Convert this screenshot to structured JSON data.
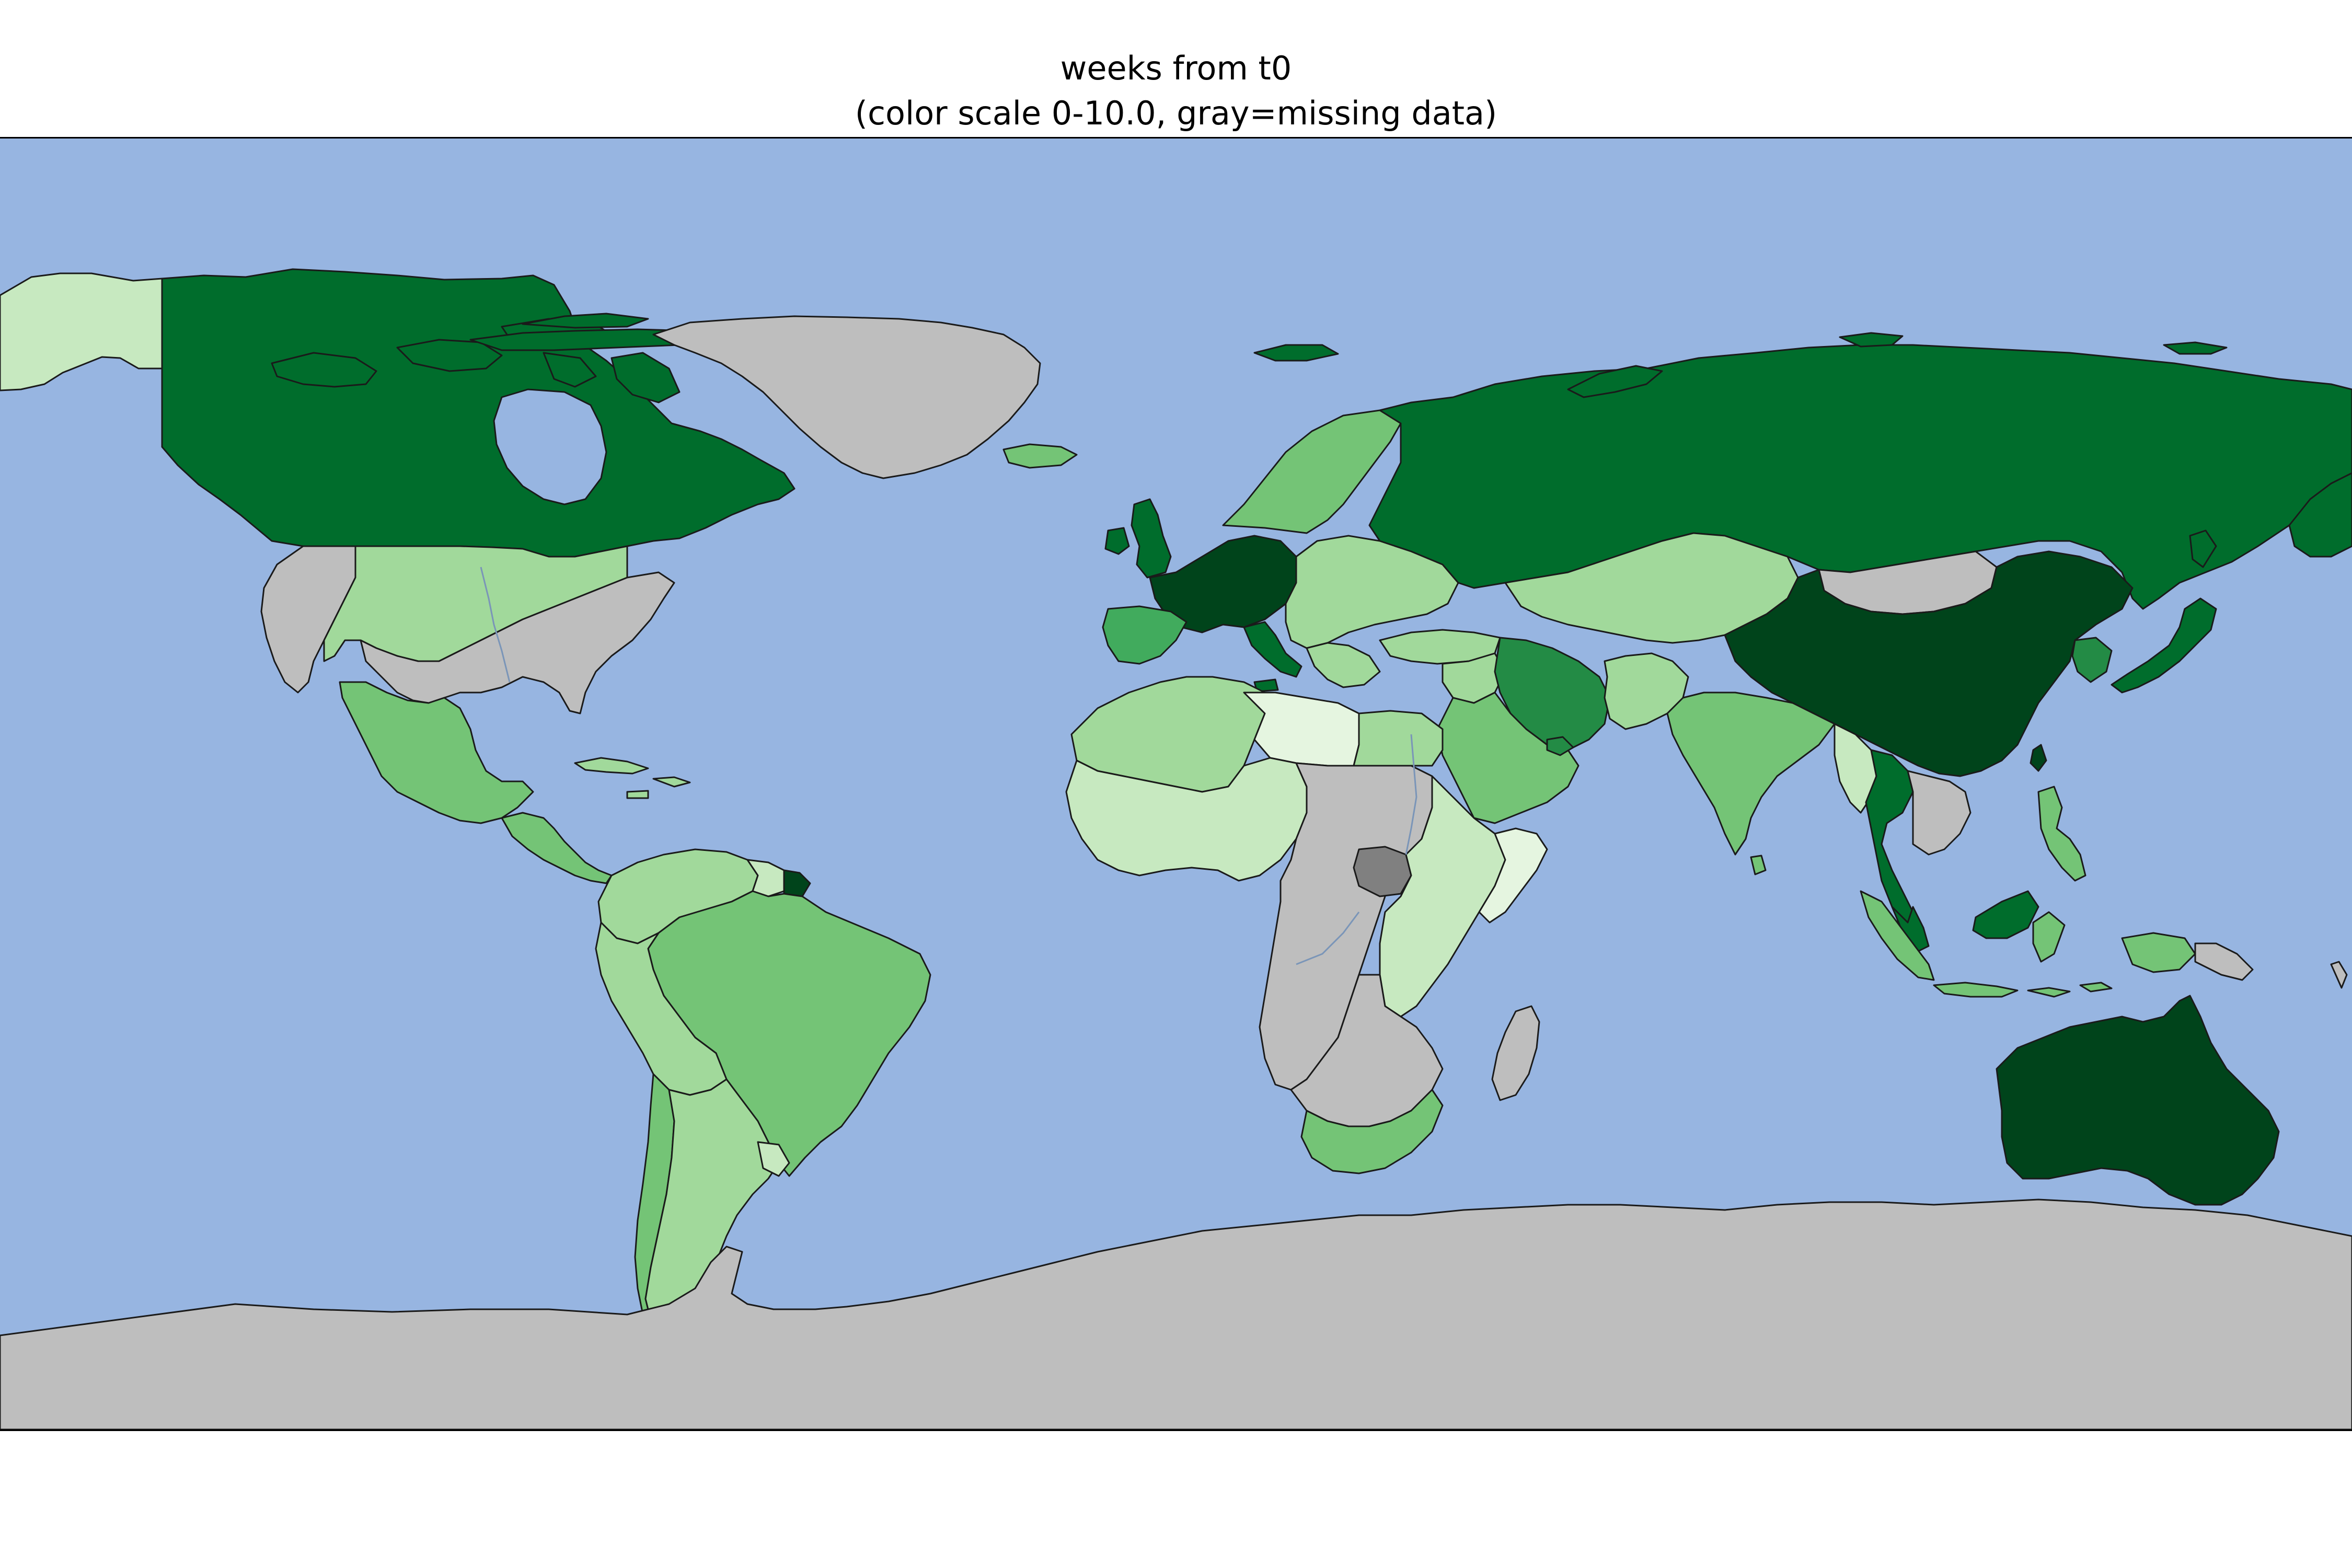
{
  "title": {
    "line1": "weeks from t0",
    "line2": "(color scale 0-10.0, gray=missing data)"
  },
  "colors": {
    "ocean": "#97b5e1",
    "missing": "#bebebe",
    "dark_missing": "#808080",
    "coast": "#1a1a1a",
    "river": "#7a95b8",
    "scale": [
      "#f7fcf5",
      "#e5f5e0",
      "#c7e9c0",
      "#a1d99b",
      "#74c476",
      "#41ab5d",
      "#238b45",
      "#006d2c",
      "#00441b"
    ]
  },
  "color_scale": {
    "min": 0,
    "max": 10.0,
    "missing_label": "gray=missing data"
  },
  "regions": [
    {
      "name": "Alaska",
      "level": 2
    },
    {
      "name": "Canada",
      "level": 7
    },
    {
      "name": "Greenland",
      "level": null
    },
    {
      "name": "United States (west)",
      "level": null
    },
    {
      "name": "United States (central)",
      "level": 3
    },
    {
      "name": "United States (east)",
      "level": null
    },
    {
      "name": "Mexico",
      "level": 4
    },
    {
      "name": "Central America",
      "level": 4
    },
    {
      "name": "Caribbean",
      "level": 3
    },
    {
      "name": "Colombia / Venezuela",
      "level": 3
    },
    {
      "name": "Guianas",
      "level": 2
    },
    {
      "name": "French Guiana",
      "level": 8
    },
    {
      "name": "Brazil",
      "level": 4
    },
    {
      "name": "Peru / Bolivia",
      "level": 3
    },
    {
      "name": "Chile",
      "level": 4
    },
    {
      "name": "Argentina",
      "level": 3
    },
    {
      "name": "Uruguay",
      "level": 2
    },
    {
      "name": "Iceland",
      "level": 4
    },
    {
      "name": "Ireland / United Kingdom",
      "level": 7
    },
    {
      "name": "France / Germany",
      "level": 8
    },
    {
      "name": "Italy",
      "level": 7
    },
    {
      "name": "Iberia",
      "level": 5
    },
    {
      "name": "Scandinavia",
      "level": 4
    },
    {
      "name": "Central and Eastern Europe",
      "level": 3
    },
    {
      "name": "Russia",
      "level": 7
    },
    {
      "name": "Kazakhstan / Central Asia",
      "level": 3
    },
    {
      "name": "Mongolia",
      "level": null
    },
    {
      "name": "China",
      "level": 8
    },
    {
      "name": "Japan",
      "level": 7
    },
    {
      "name": "Korea",
      "level": 6
    },
    {
      "name": "Turkey",
      "level": 3
    },
    {
      "name": "Iran",
      "level": 6
    },
    {
      "name": "Arabian Peninsula",
      "level": 4
    },
    {
      "name": "Pakistan",
      "level": 3
    },
    {
      "name": "India",
      "level": 4
    },
    {
      "name": "Thailand",
      "level": 7
    },
    {
      "name": "Myanmar",
      "level": 2
    },
    {
      "name": "Indochina",
      "level": null
    },
    {
      "name": "Malaysia",
      "level": 7
    },
    {
      "name": "Indonesia",
      "level": 4
    },
    {
      "name": "Philippines",
      "level": 4
    },
    {
      "name": "Papua New Guinea",
      "level": null
    },
    {
      "name": "Australia",
      "level": 8
    },
    {
      "name": "North Africa",
      "level": 3
    },
    {
      "name": "Libya",
      "level": 1
    },
    {
      "name": "Egypt",
      "level": 3
    },
    {
      "name": "West Africa",
      "level": 2
    },
    {
      "name": "Central Africa",
      "level": null
    },
    {
      "name": "South Sudan",
      "level": "dark"
    },
    {
      "name": "East Africa",
      "level": 2
    },
    {
      "name": "Somalia",
      "level": 1
    },
    {
      "name": "Southern Africa (interior)",
      "level": null
    },
    {
      "name": "South Africa",
      "level": 4
    },
    {
      "name": "Madagascar",
      "level": null
    },
    {
      "name": "Antarctica",
      "level": null
    }
  ]
}
